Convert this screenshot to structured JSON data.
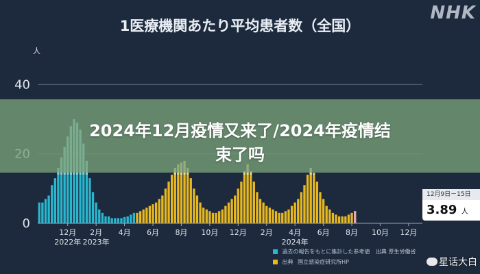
{
  "branding": {
    "logo": "NHK"
  },
  "chart_data": {
    "type": "bar",
    "title": "1医療機関あたり平均患者数（全国）",
    "ylabel": "人",
    "ylim": [
      0,
      45
    ],
    "yticks": [
      "0",
      "20",
      "40"
    ],
    "ytick_values": [
      0,
      20,
      40
    ],
    "x_tick_labels": [
      {
        "label": "12月",
        "index": 9
      },
      {
        "label": "2月",
        "index": 18
      },
      {
        "label": "4月",
        "index": 27
      },
      {
        "label": "6月",
        "index": 36
      },
      {
        "label": "8月",
        "index": 45
      },
      {
        "label": "10月",
        "index": 54
      },
      {
        "label": "12月",
        "index": 63
      },
      {
        "label": "2月",
        "index": 72
      },
      {
        "label": "4月",
        "index": 81
      },
      {
        "label": "6月",
        "index": 90
      },
      {
        "label": "8月",
        "index": 99
      },
      {
        "label": "10月",
        "index": 108
      },
      {
        "label": "12月",
        "index": 117
      }
    ],
    "year_labels": [
      {
        "label": "2022年",
        "index": 9
      },
      {
        "label": "2023年",
        "index": 18
      },
      {
        "label": "2024年",
        "index": 81
      }
    ],
    "series": [
      {
        "name": "過去の報告をもとに集計した参考値",
        "color": "#29b7cf",
        "color_light": "#7fd6e0",
        "start_index": 0,
        "values": [
          6,
          6,
          7,
          8,
          11,
          13,
          16,
          19,
          22,
          25,
          28,
          30,
          29,
          27,
          23,
          18,
          13,
          9,
          6,
          4,
          3,
          2,
          2,
          1.5,
          1.5,
          1.5,
          1.5,
          1.8,
          2,
          2.5,
          3
        ]
      },
      {
        "name": "国立感染症研究所HP",
        "color": "#e8b81f",
        "color_light": "#f4dc86",
        "start_index": 31,
        "values": [
          3,
          3.5,
          4,
          4.5,
          5,
          5.5,
          6,
          7,
          8,
          10,
          12,
          14,
          16,
          17,
          17.5,
          18,
          16,
          13,
          10,
          8,
          6,
          4.5,
          4,
          3.5,
          3,
          3,
          3.5,
          4,
          5,
          6,
          7,
          8,
          10,
          12,
          15,
          17,
          15,
          12,
          9,
          7,
          6,
          5,
          4.5,
          4,
          3.5,
          3,
          3,
          3.5,
          4,
          5,
          6,
          7,
          9,
          11,
          14,
          16,
          14.5,
          12,
          9,
          7,
          5,
          4,
          3,
          2.5,
          2,
          2,
          2,
          2.5,
          3,
          3.5
        ]
      }
    ],
    "highlight": {
      "date_label": "12月9日－15日",
      "value": "3.89",
      "unit": "人"
    },
    "notes": [
      "過去の報告をもとに集計した参考値",
      "国立感染症研究所HP"
    ],
    "note_sources": [
      "出典 厚生労働省",
      "出典"
    ]
  },
  "overlay": {
    "line1": "2024年12月疫情又来了/2024年疫情结",
    "line2": "束了吗"
  },
  "watermark": "星话大白"
}
